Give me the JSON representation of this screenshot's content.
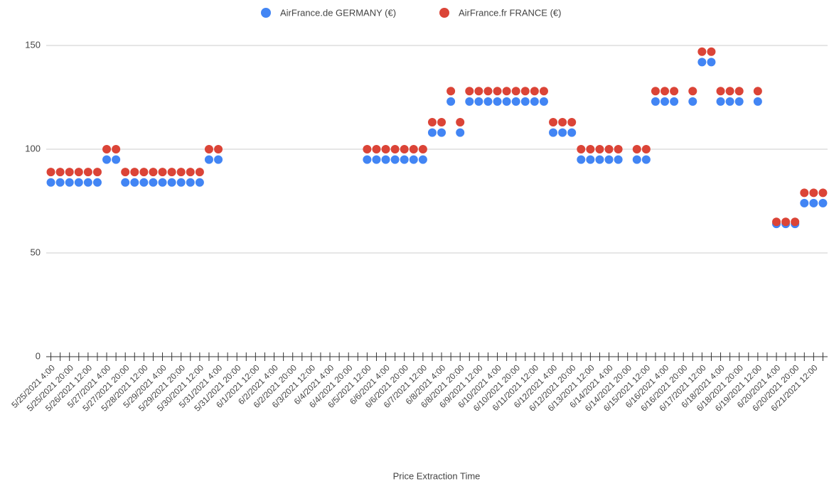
{
  "chart_data": {
    "type": "scatter",
    "x_label": "Price Extraction Time",
    "categories": [
      "5/25/2021 4:00",
      null,
      "5/25/2021 20:00",
      null,
      "5/26/2021 12:00",
      null,
      "5/27/2021 4:00",
      null,
      "5/27/2021 20:00",
      null,
      "5/28/2021 12:00",
      null,
      "5/29/2021 4:00",
      null,
      "5/29/2021 20:00",
      null,
      "5/30/2021 12:00",
      null,
      "5/31/2021 4:00",
      null,
      "5/31/2021 20:00",
      null,
      "6/1/2021 12:00",
      null,
      "6/2/2021 4:00",
      null,
      "6/2/2021 20:00",
      null,
      "6/3/2021 12:00",
      null,
      "6/4/2021 4:00",
      null,
      "6/4/2021 20:00",
      null,
      "6/5/2021 12:00",
      null,
      "6/6/2021 4:00",
      null,
      "6/6/2021 20:00",
      null,
      "6/7/2021 12:00",
      null,
      "6/8/2021 4:00",
      null,
      "6/8/2021 20:00",
      null,
      "6/9/2021 12:00",
      null,
      "6/10/2021 4:00",
      null,
      "6/10/2021 20:00",
      null,
      "6/11/2021 12:00",
      null,
      "6/12/2021 4:00",
      null,
      "6/12/2021 20:00",
      null,
      "6/13/2021 12:00",
      null,
      "6/14/2021 4:00",
      null,
      "6/14/2021 20:00",
      null,
      "6/15/2021 12:00",
      null,
      "6/16/2021 4:00",
      null,
      "6/16/2021 20:00",
      null,
      "6/17/2021 12:00",
      null,
      "6/18/2021 4:00",
      null,
      "6/18/2021 20:00",
      null,
      "6/19/2021 12:00",
      null,
      "6/20/2021 4:00",
      null,
      "6/20/2021 20:00",
      null,
      "6/21/2021 12:00",
      null
    ],
    "series": [
      {
        "name": "AirFrance.de GERMANY (€)",
        "color": "#4285f4",
        "values": [
          84,
          84,
          84,
          84,
          84,
          84,
          95,
          95,
          84,
          84,
          84,
          84,
          84,
          84,
          84,
          84,
          84,
          95,
          95,
          null,
          null,
          null,
          null,
          null,
          null,
          null,
          null,
          null,
          null,
          null,
          null,
          null,
          null,
          null,
          95,
          95,
          95,
          95,
          95,
          95,
          95,
          108,
          108,
          123,
          108,
          123,
          123,
          123,
          123,
          123,
          123,
          123,
          123,
          123,
          108,
          108,
          108,
          95,
          95,
          95,
          95,
          95,
          null,
          95,
          95,
          123,
          123,
          123,
          null,
          123,
          142,
          142,
          123,
          123,
          123,
          null,
          123,
          null,
          64,
          64,
          64,
          74,
          74,
          74
        ]
      },
      {
        "name": "AirFrance.fr FRANCE (€)",
        "color": "#db4437",
        "values": [
          89,
          89,
          89,
          89,
          89,
          89,
          100,
          100,
          89,
          89,
          89,
          89,
          89,
          89,
          89,
          89,
          89,
          100,
          100,
          null,
          null,
          null,
          null,
          null,
          null,
          null,
          null,
          null,
          null,
          null,
          null,
          null,
          null,
          null,
          100,
          100,
          100,
          100,
          100,
          100,
          100,
          113,
          113,
          128,
          113,
          128,
          128,
          128,
          128,
          128,
          128,
          128,
          128,
          128,
          113,
          113,
          113,
          100,
          100,
          100,
          100,
          100,
          null,
          100,
          100,
          128,
          128,
          128,
          null,
          128,
          147,
          147,
          128,
          128,
          128,
          null,
          128,
          null,
          65,
          65,
          65,
          79,
          79,
          79
        ]
      }
    ],
    "ylim": [
      0,
      150
    ],
    "yticks": [
      0,
      50,
      100,
      150
    ],
    "grid": true,
    "legend": "top"
  }
}
